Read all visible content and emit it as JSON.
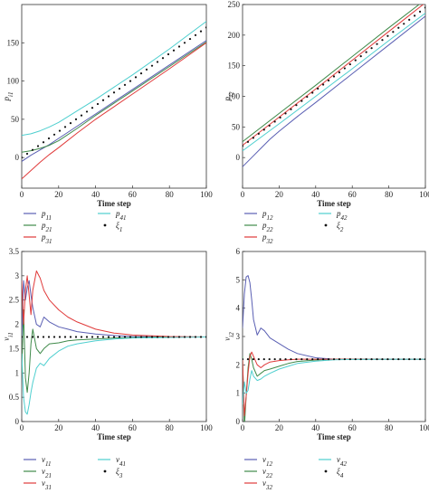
{
  "chart_data": [
    {
      "type": "line",
      "xlabel": "Time step",
      "ylabel": "p_{i1}",
      "xlim": [
        0,
        100
      ],
      "ylim": [
        -40,
        200
      ],
      "xticks": [
        "0",
        "20",
        "40",
        "60",
        "80",
        "100"
      ],
      "yticks": [
        "0",
        "50",
        "100",
        "150"
      ],
      "grid": false,
      "legend_position": "below",
      "series": [
        {
          "name": "p_{11}",
          "color": "#5a5fb3",
          "style": "solid",
          "x": [
            0,
            5,
            10,
            15,
            20,
            30,
            40,
            60,
            80,
            100
          ],
          "y": [
            -5,
            3,
            10,
            17,
            25,
            41,
            57,
            89,
            121,
            153
          ]
        },
        {
          "name": "p_{21}",
          "color": "#3f8a4a",
          "style": "solid",
          "x": [
            0,
            5,
            10,
            15,
            20,
            30,
            40,
            60,
            80,
            100
          ],
          "y": [
            7,
            9,
            12,
            16,
            22,
            38,
            55,
            87,
            119,
            151
          ]
        },
        {
          "name": "p_{31}",
          "color": "#e03a3a",
          "style": "solid",
          "x": [
            0,
            5,
            10,
            15,
            20,
            30,
            40,
            60,
            80,
            100
          ],
          "y": [
            -28,
            -17,
            -6,
            4,
            13,
            32,
            50,
            83,
            116,
            150
          ]
        },
        {
          "name": "p_{41}",
          "color": "#4ecfcf",
          "style": "solid",
          "x": [
            0,
            5,
            10,
            15,
            20,
            30,
            40,
            60,
            80,
            100
          ],
          "y": [
            29,
            31,
            35,
            40,
            46,
            61,
            76,
            108,
            142,
            178
          ]
        },
        {
          "name": "ξ_1",
          "color": "#111111",
          "style": "dotted",
          "x": [
            0,
            20,
            40,
            60,
            80,
            100
          ],
          "y": [
            0,
            34,
            68,
            102,
            136,
            170
          ]
        }
      ]
    },
    {
      "type": "line",
      "xlabel": "Time step",
      "ylabel": "p_{i2}",
      "xlim": [
        0,
        100
      ],
      "ylim": [
        -50,
        250
      ],
      "xticks": [
        "0",
        "20",
        "40",
        "60",
        "80",
        "100"
      ],
      "yticks": [
        "0",
        "50",
        "100",
        "150",
        "200",
        "250"
      ],
      "grid": false,
      "legend_position": "below",
      "series": [
        {
          "name": "p_{12}",
          "color": "#5a5fb3",
          "style": "solid",
          "x": [
            0,
            5,
            10,
            15,
            20,
            30,
            40,
            60,
            80,
            100
          ],
          "y": [
            -15,
            0,
            15,
            30,
            43,
            67,
            90,
            137,
            184,
            231
          ]
        },
        {
          "name": "p_{22}",
          "color": "#3f8a4a",
          "style": "solid",
          "x": [
            0,
            20,
            40,
            60,
            80,
            100
          ],
          "y": [
            26,
            72,
            118,
            165,
            212,
            258
          ]
        },
        {
          "name": "p_{32}",
          "color": "#e03a3a",
          "style": "solid",
          "x": [
            0,
            20,
            40,
            60,
            80,
            100
          ],
          "y": [
            20,
            66,
            112,
            159,
            206,
            253
          ]
        },
        {
          "name": "p_{42}",
          "color": "#4ecfcf",
          "style": "solid",
          "x": [
            0,
            20,
            40,
            60,
            80,
            100
          ],
          "y": [
            11,
            55,
            100,
            145,
            191,
            236
          ]
        },
        {
          "name": "ξ_2",
          "color": "#111111",
          "style": "dotted",
          "x": [
            0,
            20,
            40,
            60,
            80,
            100
          ],
          "y": [
            19,
            64,
            110,
            155,
            200,
            245
          ]
        }
      ]
    },
    {
      "type": "line",
      "xlabel": "Time step",
      "ylabel": "v_{i1}",
      "xlim": [
        0,
        100
      ],
      "ylim": [
        0,
        3.5
      ],
      "xticks": [
        "0",
        "20",
        "40",
        "60",
        "80",
        "100"
      ],
      "yticks": [
        "0",
        "0.5",
        "1",
        "1.5",
        "2",
        "2.5",
        "3",
        "3.5"
      ],
      "grid": false,
      "legend_position": "below",
      "series": [
        {
          "name": "v_{11}",
          "color": "#5a5fb3",
          "style": "solid",
          "x": [
            0,
            1,
            2,
            3,
            4,
            5,
            6,
            8,
            10,
            12,
            15,
            20,
            25,
            30,
            40,
            50,
            60,
            80,
            100
          ],
          "y": [
            1.7,
            2.9,
            2.5,
            2.75,
            2.9,
            2.6,
            2.35,
            2.0,
            1.95,
            2.15,
            2.05,
            1.95,
            1.9,
            1.85,
            1.8,
            1.77,
            1.75,
            1.74,
            1.74
          ]
        },
        {
          "name": "v_{21}",
          "color": "#3f8a4a",
          "style": "solid",
          "x": [
            0,
            1,
            2,
            3,
            4,
            5,
            6,
            8,
            10,
            12,
            15,
            20,
            25,
            30,
            40,
            50,
            60,
            80,
            100
          ],
          "y": [
            1.0,
            2.3,
            0.9,
            0.6,
            1.0,
            1.6,
            1.9,
            1.5,
            1.4,
            1.5,
            1.6,
            1.62,
            1.66,
            1.68,
            1.7,
            1.72,
            1.73,
            1.74,
            1.74
          ]
        },
        {
          "name": "v_{31}",
          "color": "#e03a3a",
          "style": "solid",
          "x": [
            0,
            1,
            2,
            3,
            4,
            5,
            6,
            8,
            10,
            12,
            15,
            20,
            25,
            30,
            40,
            50,
            60,
            80,
            100
          ],
          "y": [
            2.9,
            2.0,
            2.7,
            3.0,
            2.6,
            2.2,
            2.7,
            3.1,
            2.95,
            2.7,
            2.5,
            2.3,
            2.15,
            2.05,
            1.9,
            1.82,
            1.78,
            1.75,
            1.74
          ]
        },
        {
          "name": "v_{41}",
          "color": "#4ecfcf",
          "style": "solid",
          "x": [
            0,
            1,
            2,
            3,
            4,
            5,
            6,
            8,
            10,
            12,
            15,
            20,
            25,
            30,
            40,
            50,
            60,
            80,
            100
          ],
          "y": [
            1.4,
            0.5,
            0.2,
            0.15,
            0.35,
            0.6,
            0.8,
            1.1,
            1.2,
            1.15,
            1.3,
            1.45,
            1.55,
            1.6,
            1.66,
            1.7,
            1.72,
            1.73,
            1.74
          ]
        },
        {
          "name": "ξ_3",
          "color": "#111111",
          "style": "dotted",
          "x": [
            0,
            100
          ],
          "y": [
            1.74,
            1.74
          ]
        }
      ]
    },
    {
      "type": "line",
      "xlabel": "Time step",
      "ylabel": "v_{i2}",
      "xlim": [
        0,
        100
      ],
      "ylim": [
        0,
        6
      ],
      "xticks": [
        "0",
        "20",
        "40",
        "60",
        "80",
        "100"
      ],
      "yticks": [
        "0",
        "1",
        "2",
        "3",
        "4",
        "5",
        "6"
      ],
      "grid": false,
      "legend_position": "below",
      "series": [
        {
          "name": "v_{12}",
          "color": "#5a5fb3",
          "style": "solid",
          "x": [
            0,
            1,
            2,
            3,
            4,
            5,
            6,
            8,
            10,
            12,
            15,
            20,
            25,
            30,
            40,
            50,
            60,
            80,
            100
          ],
          "y": [
            3.3,
            4.5,
            5.1,
            5.15,
            4.9,
            4.3,
            3.6,
            3.05,
            3.3,
            3.2,
            2.95,
            2.75,
            2.55,
            2.4,
            2.25,
            2.2,
            2.2,
            2.2,
            2.2
          ]
        },
        {
          "name": "v_{22}",
          "color": "#3f8a4a",
          "style": "solid",
          "x": [
            0,
            1,
            2,
            3,
            4,
            5,
            6,
            8,
            10,
            12,
            15,
            20,
            25,
            30,
            40,
            50,
            60,
            80,
            100
          ],
          "y": [
            2.3,
            -0.2,
            0.9,
            1.9,
            2.4,
            2.2,
            1.9,
            1.6,
            1.7,
            1.8,
            1.85,
            1.95,
            2.05,
            2.12,
            2.17,
            2.2,
            2.2,
            2.2,
            2.2
          ]
        },
        {
          "name": "v_{32}",
          "color": "#e03a3a",
          "style": "solid",
          "x": [
            0,
            1,
            2,
            3,
            4,
            5,
            6,
            8,
            10,
            12,
            15,
            20,
            25,
            30,
            40,
            50,
            60,
            80,
            100
          ],
          "y": [
            2.2,
            0.2,
            0.9,
            1.7,
            2.3,
            2.45,
            2.3,
            2.0,
            1.9,
            2.0,
            2.1,
            2.15,
            2.18,
            2.2,
            2.2,
            2.2,
            2.2,
            2.2,
            2.2
          ]
        },
        {
          "name": "v_{42}",
          "color": "#4ecfcf",
          "style": "solid",
          "x": [
            0,
            1,
            2,
            3,
            4,
            5,
            6,
            8,
            10,
            12,
            15,
            20,
            25,
            30,
            40,
            50,
            60,
            80,
            100
          ],
          "y": [
            0.6,
            1.4,
            1.0,
            1.1,
            1.5,
            1.8,
            1.6,
            1.45,
            1.5,
            1.6,
            1.7,
            1.85,
            1.95,
            2.05,
            2.13,
            2.18,
            2.19,
            2.2,
            2.2
          ]
        },
        {
          "name": "ξ_4",
          "color": "#111111",
          "style": "dotted",
          "x": [
            0,
            100
          ],
          "y": [
            2.2,
            2.2
          ]
        }
      ]
    }
  ]
}
